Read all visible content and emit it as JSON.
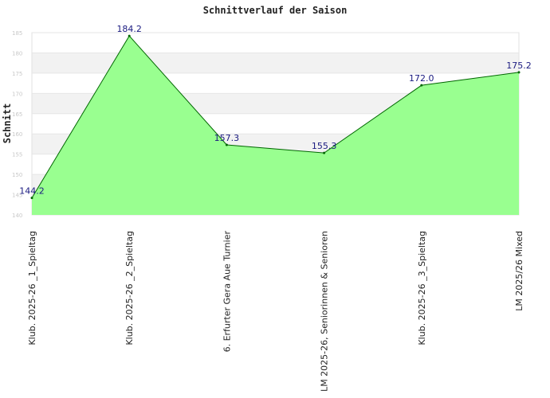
{
  "chart_data": {
    "type": "area",
    "title": "Schnittverlauf der Saison",
    "xlabel": "",
    "ylabel": "Schnitt",
    "categories": [
      "Klub. 2025-26 _1_Spieltag",
      "Klub. 2025-26 _2_Spieltag",
      "6. Erfurter Gera Aue Turnier",
      "LM 2025-26, Seniorinnen & Senioren",
      "Klub. 2025-26 _3_Spieltag",
      "LM 2025/26 Mixed"
    ],
    "series": [
      {
        "values": [
          144.2,
          184.2,
          157.3,
          155.3,
          172.0,
          175.2
        ]
      }
    ],
    "data_labels": [
      "144.2",
      "184.2",
      "157.3",
      "155.3",
      "172.0",
      "175.2"
    ],
    "yticks": [
      "140",
      "145",
      "150",
      "155",
      "160",
      "165",
      "170",
      "175",
      "180",
      "185"
    ],
    "ylim": [
      140,
      185
    ],
    "grid": true,
    "colors": {
      "fill": "#99ff90",
      "line": "#006600",
      "band": "#f2f2f2",
      "label": "#1a1a80"
    }
  }
}
